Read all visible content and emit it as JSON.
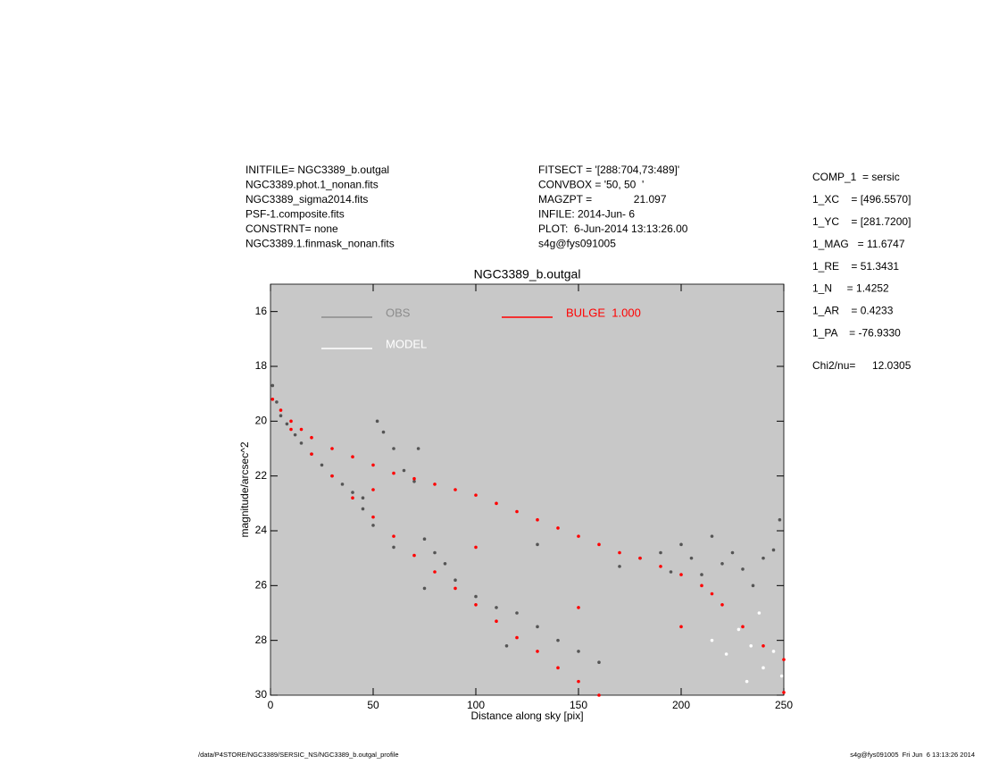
{
  "header": {
    "left": [
      "INITFILE= NGC3389_b.outgal",
      "NGC3389.phot.1_nonan.fits",
      "NGC3389_sigma2014.fits",
      "PSF-1.composite.fits",
      "CONSTRNT= none",
      "NGC3389.1.finmask_nonan.fits"
    ],
    "middle": [
      "FITSECT = '[288:704,73:489]'",
      "CONVBOX = '50, 50  '",
      "MAGZPT =              21.097",
      "INFILE: 2014-Jun- 6",
      "PLOT:  6-Jun-2014 13:13:26.00",
      "s4g@fys091005"
    ],
    "params": [
      "COMP_1  = sersic",
      "1_XC    = [496.5570]",
      "1_YC    = [281.7200]",
      "1_MAG   = 11.6747",
      "1_RE    = 51.3431",
      "1_N     = 1.4252",
      "1_AR    = 0.4233",
      "1_PA    = -76.9330"
    ],
    "chi2": {
      "label": "Chi2/nu=",
      "value": "12.0305"
    }
  },
  "footer": {
    "left": "/data/P4STORE/NGC3389/SERSIC_NS/NGC3389_b.outgal_profile",
    "right": "s4g@fys091005  Fri Jun  6 13:13:26 2014"
  },
  "chart_data": {
    "type": "scatter",
    "title": "NGC3389_b.outgal",
    "x_label": "Distance along sky [pix]",
    "y_label": "magnitude/arcsec^2",
    "xlim": [
      0,
      250
    ],
    "xticks": [
      0,
      50,
      100,
      150,
      200,
      250
    ],
    "ylim": [
      30,
      15
    ],
    "yticks": [
      16,
      18,
      20,
      22,
      24,
      26,
      28,
      30
    ],
    "background": "#c8c8c8",
    "series": [
      {
        "name": "OBS",
        "color": "#555555",
        "legend_color": "#8c8c8c",
        "x": [
          1,
          3,
          5,
          8,
          12,
          15,
          20,
          25,
          30,
          35,
          40,
          45,
          50,
          52,
          55,
          60,
          65,
          70,
          72,
          75,
          80,
          85,
          90,
          100,
          110,
          120,
          130,
          140,
          150,
          160,
          170,
          180,
          190,
          195,
          200,
          205,
          210,
          215,
          220,
          225,
          230,
          235,
          240,
          245,
          248,
          60,
          75,
          45,
          115,
          130
        ],
        "values": [
          18.7,
          19.3,
          19.8,
          20.1,
          20.5,
          20.8,
          21.2,
          21.6,
          22.0,
          22.3,
          22.6,
          23.2,
          23.8,
          20.0,
          20.4,
          21.0,
          21.8,
          22.2,
          21.0,
          24.3,
          24.8,
          25.2,
          25.8,
          26.4,
          26.8,
          27.0,
          27.5,
          28.0,
          28.4,
          28.8,
          25.3,
          25.0,
          24.8,
          25.5,
          24.5,
          25.0,
          25.6,
          24.2,
          25.2,
          24.8,
          25.4,
          26.0,
          25.0,
          24.7,
          23.6,
          24.6,
          26.1,
          22.8,
          28.2,
          24.5
        ]
      },
      {
        "name": "MODEL",
        "color": "#ffffff",
        "x": [
          215,
          222,
          228,
          234,
          240,
          245,
          249,
          238,
          232
        ],
        "values": [
          28.0,
          28.5,
          27.6,
          28.2,
          29.0,
          28.4,
          29.3,
          27.0,
          29.5
        ]
      },
      {
        "name": "BULGE  1.000",
        "color": "#ff0000",
        "x": [
          1,
          5,
          10,
          15,
          20,
          30,
          40,
          50,
          60,
          70,
          80,
          90,
          100,
          110,
          120,
          130,
          140,
          150,
          160,
          170,
          180,
          190,
          200,
          210,
          215,
          220,
          230,
          240,
          250,
          10,
          20,
          30,
          40,
          50,
          60,
          70,
          80,
          90,
          100,
          110,
          120,
          130,
          140,
          150,
          160,
          50,
          100,
          150,
          200,
          250
        ],
        "values": [
          19.2,
          19.6,
          20.0,
          20.3,
          20.6,
          21.0,
          21.3,
          21.6,
          21.9,
          22.1,
          22.3,
          22.5,
          22.7,
          23.0,
          23.3,
          23.6,
          23.9,
          24.2,
          24.5,
          24.8,
          25.0,
          25.3,
          25.6,
          26.0,
          26.3,
          26.7,
          27.5,
          28.2,
          28.7,
          20.3,
          21.2,
          22.0,
          22.8,
          23.5,
          24.2,
          24.9,
          25.5,
          26.1,
          26.7,
          27.3,
          27.9,
          28.4,
          29.0,
          29.5,
          30.0,
          22.5,
          24.6,
          26.8,
          27.5,
          29.9
        ]
      }
    ]
  }
}
